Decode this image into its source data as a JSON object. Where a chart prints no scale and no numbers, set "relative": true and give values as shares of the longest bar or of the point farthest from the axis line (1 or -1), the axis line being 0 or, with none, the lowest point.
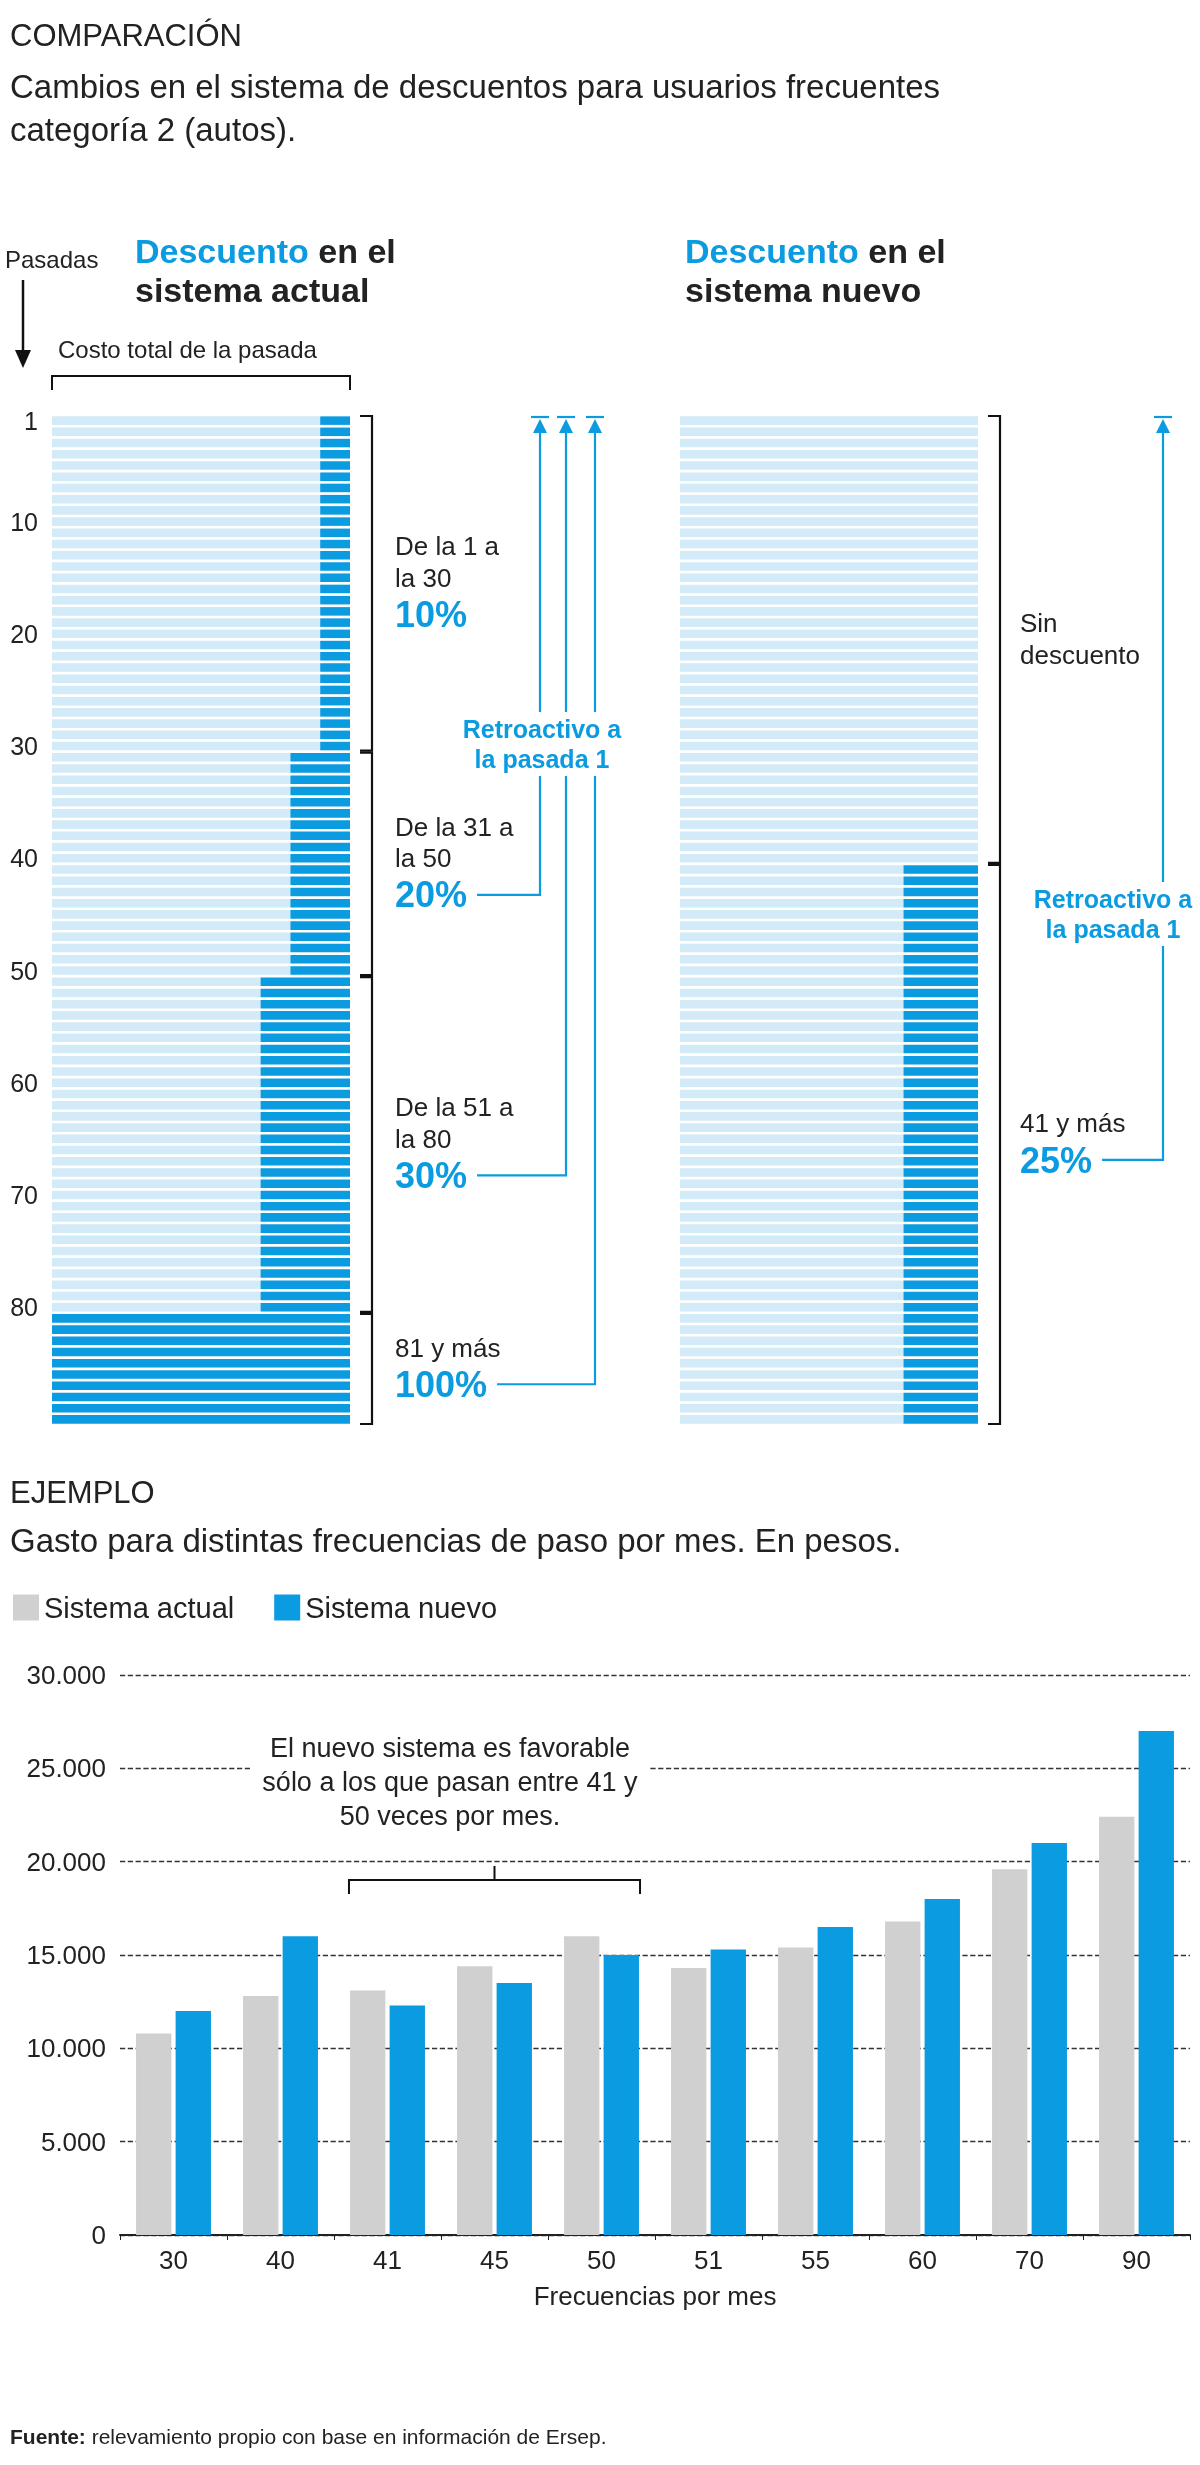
{
  "chart_data": [
    {
      "type": "bar",
      "orientation": "horizontal",
      "stacked": true,
      "relative": true,
      "tick_labels": "y",
      "title": "COMPARACIÓN",
      "subtitle": "Cambios en el sistema de descuentos para usuarios frecuentes categoría 2 (autos).",
      "xlabel": "Costo total de la pasada",
      "ylabel": "Pasadas",
      "categories": [
        "1",
        null,
        null,
        null,
        null,
        null,
        null,
        null,
        null,
        "10",
        null,
        null,
        null,
        null,
        null,
        null,
        null,
        null,
        null,
        "20",
        null,
        null,
        null,
        null,
        null,
        null,
        null,
        null,
        null,
        "30",
        null,
        null,
        null,
        null,
        null,
        null,
        null,
        null,
        null,
        "40",
        null,
        null,
        null,
        null,
        null,
        null,
        null,
        null,
        null,
        "50",
        null,
        null,
        null,
        null,
        null,
        null,
        null,
        null,
        null,
        "60",
        null,
        null,
        null,
        null,
        null,
        null,
        null,
        null,
        null,
        "70",
        null,
        null,
        null,
        null,
        null,
        null,
        null,
        null,
        null,
        "80",
        null,
        null,
        null,
        null,
        null,
        null,
        null,
        null,
        null,
        null
      ],
      "series": [
        {
          "color": "#d3eaf8",
          "values": [
            0.9,
            0.9,
            0.9,
            0.9,
            0.9,
            0.9,
            0.9,
            0.9,
            0.9,
            0.9,
            0.9,
            0.9,
            0.9,
            0.9,
            0.9,
            0.9,
            0.9,
            0.9,
            0.9,
            0.9,
            0.9,
            0.9,
            0.9,
            0.9,
            0.9,
            0.9,
            0.9,
            0.9,
            0.9,
            0.9,
            0.8,
            0.8,
            0.8,
            0.8,
            0.8,
            0.8,
            0.8,
            0.8,
            0.8,
            0.8,
            0.8,
            0.8,
            0.8,
            0.8,
            0.8,
            0.8,
            0.8,
            0.8,
            0.8,
            0.8,
            0.7,
            0.7,
            0.7,
            0.7,
            0.7,
            0.7,
            0.7,
            0.7,
            0.7,
            0.7,
            0.7,
            0.7,
            0.7,
            0.7,
            0.7,
            0.7,
            0.7,
            0.7,
            0.7,
            0.7,
            0.7,
            0.7,
            0.7,
            0.7,
            0.7,
            0.7,
            0.7,
            0.7,
            0.7,
            0.7,
            0,
            0,
            0,
            0,
            0,
            0,
            0,
            0,
            0,
            0
          ]
        },
        {
          "color": "#0a9be0",
          "values": [
            0.1,
            0.1,
            0.1,
            0.1,
            0.1,
            0.1,
            0.1,
            0.1,
            0.1,
            0.1,
            0.1,
            0.1,
            0.1,
            0.1,
            0.1,
            0.1,
            0.1,
            0.1,
            0.1,
            0.1,
            0.1,
            0.1,
            0.1,
            0.1,
            0.1,
            0.1,
            0.1,
            0.1,
            0.1,
            0.1,
            0.2,
            0.2,
            0.2,
            0.2,
            0.2,
            0.2,
            0.2,
            0.2,
            0.2,
            0.2,
            0.2,
            0.2,
            0.2,
            0.2,
            0.2,
            0.2,
            0.2,
            0.2,
            0.2,
            0.2,
            0.3,
            0.3,
            0.3,
            0.3,
            0.3,
            0.3,
            0.3,
            0.3,
            0.3,
            0.3,
            0.3,
            0.3,
            0.3,
            0.3,
            0.3,
            0.3,
            0.3,
            0.3,
            0.3,
            0.3,
            0.3,
            0.3,
            0.3,
            0.3,
            0.3,
            0.3,
            0.3,
            0.3,
            0.3,
            0.3,
            1,
            1,
            1,
            1,
            1,
            1,
            1,
            1,
            1,
            1
          ]
        }
      ],
      "annotations": [
        "Descuento en el sistema actual",
        "De la 1 a la 30",
        "10%",
        "De la 31 a la 50",
        "20%",
        "De la 51 a la 80",
        "30%",
        "81 y más",
        "100%",
        "Retroactivo a la pasada 1"
      ]
    },
    {
      "type": "bar",
      "orientation": "horizontal",
      "stacked": true,
      "relative": true,
      "tick_labels": false,
      "categories": [
        null,
        null,
        null,
        null,
        null,
        null,
        null,
        null,
        null,
        null,
        null,
        null,
        null,
        null,
        null,
        null,
        null,
        null,
        null,
        null,
        null,
        null,
        null,
        null,
        null,
        null,
        null,
        null,
        null,
        null,
        null,
        null,
        null,
        null,
        null,
        null,
        null,
        null,
        null,
        null,
        null,
        null,
        null,
        null,
        null,
        null,
        null,
        null,
        null,
        null,
        null,
        null,
        null,
        null,
        null,
        null,
        null,
        null,
        null,
        null,
        null,
        null,
        null,
        null,
        null,
        null,
        null,
        null,
        null,
        null,
        null,
        null,
        null,
        null,
        null,
        null,
        null,
        null,
        null,
        null,
        null,
        null,
        null,
        null,
        null,
        null,
        null,
        null,
        null,
        null
      ],
      "series": [
        {
          "color": "#d3eaf8",
          "values": [
            1,
            1,
            1,
            1,
            1,
            1,
            1,
            1,
            1,
            1,
            1,
            1,
            1,
            1,
            1,
            1,
            1,
            1,
            1,
            1,
            1,
            1,
            1,
            1,
            1,
            1,
            1,
            1,
            1,
            1,
            1,
            1,
            1,
            1,
            1,
            1,
            1,
            1,
            1,
            1,
            0.75,
            0.75,
            0.75,
            0.75,
            0.75,
            0.75,
            0.75,
            0.75,
            0.75,
            0.75,
            0.75,
            0.75,
            0.75,
            0.75,
            0.75,
            0.75,
            0.75,
            0.75,
            0.75,
            0.75,
            0.75,
            0.75,
            0.75,
            0.75,
            0.75,
            0.75,
            0.75,
            0.75,
            0.75,
            0.75,
            0.75,
            0.75,
            0.75,
            0.75,
            0.75,
            0.75,
            0.75,
            0.75,
            0.75,
            0.75,
            0.75,
            0.75,
            0.75,
            0.75,
            0.75,
            0.75,
            0.75,
            0.75,
            0.75,
            0.75
          ]
        },
        {
          "color": "#0a9be0",
          "values": [
            0,
            0,
            0,
            0,
            0,
            0,
            0,
            0,
            0,
            0,
            0,
            0,
            0,
            0,
            0,
            0,
            0,
            0,
            0,
            0,
            0,
            0,
            0,
            0,
            0,
            0,
            0,
            0,
            0,
            0,
            0,
            0,
            0,
            0,
            0,
            0,
            0,
            0,
            0,
            0,
            0.25,
            0.25,
            0.25,
            0.25,
            0.25,
            0.25,
            0.25,
            0.25,
            0.25,
            0.25,
            0.25,
            0.25,
            0.25,
            0.25,
            0.25,
            0.25,
            0.25,
            0.25,
            0.25,
            0.25,
            0.25,
            0.25,
            0.25,
            0.25,
            0.25,
            0.25,
            0.25,
            0.25,
            0.25,
            0.25,
            0.25,
            0.25,
            0.25,
            0.25,
            0.25,
            0.25,
            0.25,
            0.25,
            0.25,
            0.25,
            0.25,
            0.25,
            0.25,
            0.25,
            0.25,
            0.25,
            0.25,
            0.25,
            0.25,
            0.25
          ]
        }
      ],
      "annotations": [
        "Descuento en el sistema nuevo",
        "Sin descuento",
        "41 y más",
        "25%",
        "Retroactivo a la pasada 1"
      ]
    },
    {
      "type": "bar",
      "title": "EJEMPLO",
      "subtitle": "Gasto para distintas frecuencias de paso por mes. En pesos.",
      "xlabel": "Frecuencias por mes",
      "categories": [
        "30",
        "40",
        "41",
        "45",
        "50",
        "51",
        "55",
        "60",
        "70",
        "90"
      ],
      "series": [
        {
          "name": "Sistema actual",
          "color": "#d0d0d0",
          "values": [
            10800,
            12800,
            13100,
            14400,
            16000,
            14300,
            15400,
            16800,
            19600,
            22400
          ]
        },
        {
          "name": "Sistema nuevo",
          "color": "#0a9be0",
          "values": [
            12000,
            16000,
            12300,
            13500,
            15000,
            15300,
            16500,
            18000,
            21000,
            27000
          ]
        }
      ],
      "ylim": [
        0,
        30000
      ],
      "yticks": [
        0,
        {
          "value": 5000,
          "label": "5.000"
        },
        {
          "value": 10000,
          "label": "10.000"
        },
        {
          "value": 15000,
          "label": "15.000"
        },
        {
          "value": 20000,
          "label": "20.000"
        },
        {
          "value": 25000,
          "label": "25.000"
        },
        {
          "value": 30000,
          "label": "30.000"
        }
      ],
      "grid": "y",
      "legend": "top left",
      "annotations": [
        "El nuevo sistema es favorable sólo a los que pasan entre 41 y 50 veces por mes.",
        "Fuente: relevamiento propio con base en información de Ersep."
      ]
    }
  ]
}
